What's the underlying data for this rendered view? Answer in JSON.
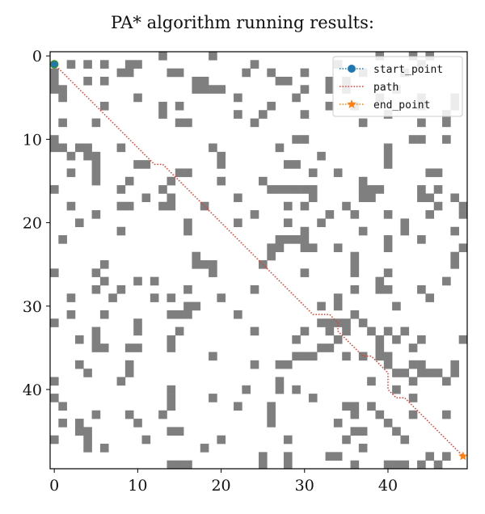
{
  "chart_data": {
    "type": "heatmap",
    "title": "PA* algorithm running results:",
    "xlabel": "",
    "ylabel": "",
    "grid_size": [
      50,
      50
    ],
    "xlim": [
      -0.5,
      49.5
    ],
    "ylim": [
      49.5,
      -0.5
    ],
    "x_ticks": [
      0,
      10,
      20,
      30,
      40
    ],
    "y_ticks": [
      0,
      10,
      20,
      30,
      40
    ],
    "grid": false,
    "colors": {
      "obstacle": "#7f7f7f",
      "free": "#ffffff",
      "start": "#1f77b4",
      "path": "#e8392b",
      "end": "#ff7f0e"
    },
    "legend": {
      "placement": "top-right",
      "entries": [
        {
          "label": "start_point",
          "marker": "circle",
          "line": "dotted",
          "color": "#1f77b4"
        },
        {
          "label": "path",
          "marker": "none",
          "line": "dotted",
          "color": "#e8392b"
        },
        {
          "label": "end_point",
          "marker": "star",
          "line": "dotted",
          "color": "#ff7f0e"
        }
      ]
    },
    "start_point": {
      "x": 0,
      "y": 1
    },
    "end_point": {
      "x": 49,
      "y": 48
    },
    "path": [
      [
        0,
        1
      ],
      [
        1,
        2
      ],
      [
        2,
        3
      ],
      [
        3,
        4
      ],
      [
        4,
        5
      ],
      [
        5,
        6
      ],
      [
        6,
        7
      ],
      [
        7,
        8
      ],
      [
        8,
        9
      ],
      [
        9,
        10
      ],
      [
        10,
        11
      ],
      [
        11,
        12
      ],
      [
        12,
        13
      ],
      [
        13,
        13
      ],
      [
        14,
        14
      ],
      [
        15,
        15
      ],
      [
        16,
        16
      ],
      [
        17,
        17
      ],
      [
        18,
        18
      ],
      [
        19,
        19
      ],
      [
        20,
        20
      ],
      [
        21,
        21
      ],
      [
        22,
        22
      ],
      [
        23,
        23
      ],
      [
        24,
        24
      ],
      [
        25,
        25
      ],
      [
        26,
        26
      ],
      [
        27,
        27
      ],
      [
        28,
        28
      ],
      [
        29,
        29
      ],
      [
        30,
        30
      ],
      [
        31,
        31
      ],
      [
        33,
        31
      ],
      [
        34,
        32
      ],
      [
        34,
        33
      ],
      [
        35,
        34
      ],
      [
        36,
        35
      ],
      [
        37,
        36
      ],
      [
        38,
        36
      ],
      [
        39,
        37
      ],
      [
        40,
        38
      ],
      [
        40,
        39
      ],
      [
        40,
        40
      ],
      [
        41,
        41
      ],
      [
        42,
        41
      ],
      [
        43,
        42
      ],
      [
        44,
        43
      ],
      [
        45,
        44
      ],
      [
        46,
        45
      ],
      [
        47,
        46
      ],
      [
        48,
        47
      ],
      [
        49,
        48
      ]
    ],
    "obstacles": [
      [
        13,
        0
      ],
      [
        19,
        0
      ],
      [
        39,
        0
      ],
      [
        43,
        0
      ],
      [
        45,
        0
      ],
      [
        2,
        1
      ],
      [
        4,
        1
      ],
      [
        6,
        1
      ],
      [
        9,
        1
      ],
      [
        10,
        1
      ],
      [
        24,
        1
      ],
      [
        34,
        1
      ],
      [
        44,
        1
      ],
      [
        0,
        2
      ],
      [
        8,
        2
      ],
      [
        9,
        2
      ],
      [
        14,
        2
      ],
      [
        15,
        2
      ],
      [
        23,
        2
      ],
      [
        26,
        2
      ],
      [
        30,
        2
      ],
      [
        37,
        2
      ],
      [
        42,
        2
      ],
      [
        0,
        3
      ],
      [
        4,
        3
      ],
      [
        6,
        3
      ],
      [
        17,
        3
      ],
      [
        18,
        3
      ],
      [
        27,
        3
      ],
      [
        28,
        3
      ],
      [
        33,
        3
      ],
      [
        35,
        3
      ],
      [
        0,
        4
      ],
      [
        1,
        4
      ],
      [
        17,
        4
      ],
      [
        18,
        4
      ],
      [
        19,
        4
      ],
      [
        20,
        4
      ],
      [
        30,
        4
      ],
      [
        33,
        4
      ],
      [
        35,
        4
      ],
      [
        41,
        4
      ],
      [
        1,
        5
      ],
      [
        10,
        5
      ],
      [
        22,
        5
      ],
      [
        29,
        5
      ],
      [
        39,
        5
      ],
      [
        44,
        5
      ],
      [
        48,
        5
      ],
      [
        6,
        6
      ],
      [
        13,
        6
      ],
      [
        15,
        6
      ],
      [
        26,
        6
      ],
      [
        33,
        6
      ],
      [
        36,
        6
      ],
      [
        44,
        6
      ],
      [
        48,
        6
      ],
      [
        13,
        7
      ],
      [
        22,
        7
      ],
      [
        25,
        7
      ],
      [
        30,
        7
      ],
      [
        40,
        7
      ],
      [
        47,
        7
      ],
      [
        1,
        8
      ],
      [
        5,
        8
      ],
      [
        15,
        8
      ],
      [
        16,
        8
      ],
      [
        24,
        8
      ],
      [
        37,
        8
      ],
      [
        44,
        8
      ],
      [
        47,
        8
      ],
      [
        0,
        10
      ],
      [
        29,
        10
      ],
      [
        30,
        10
      ],
      [
        43,
        10
      ],
      [
        44,
        10
      ],
      [
        47,
        10
      ],
      [
        0,
        11
      ],
      [
        1,
        11
      ],
      [
        3,
        11
      ],
      [
        4,
        11
      ],
      [
        8,
        11
      ],
      [
        19,
        11
      ],
      [
        27,
        11
      ],
      [
        40,
        11
      ],
      [
        2,
        12
      ],
      [
        4,
        12
      ],
      [
        5,
        12
      ],
      [
        20,
        12
      ],
      [
        32,
        12
      ],
      [
        40,
        12
      ],
      [
        5,
        13
      ],
      [
        10,
        13
      ],
      [
        11,
        13
      ],
      [
        20,
        13
      ],
      [
        28,
        13
      ],
      [
        29,
        13
      ],
      [
        40,
        13
      ],
      [
        2,
        14
      ],
      [
        5,
        14
      ],
      [
        15,
        14
      ],
      [
        16,
        14
      ],
      [
        31,
        14
      ],
      [
        34,
        14
      ],
      [
        45,
        14
      ],
      [
        46,
        14
      ],
      [
        5,
        15
      ],
      [
        9,
        15
      ],
      [
        14,
        15
      ],
      [
        20,
        15
      ],
      [
        25,
        15
      ],
      [
        37,
        15
      ],
      [
        0,
        16
      ],
      [
        8,
        16
      ],
      [
        13,
        16
      ],
      [
        26,
        16
      ],
      [
        27,
        16
      ],
      [
        28,
        16
      ],
      [
        29,
        16
      ],
      [
        30,
        16
      ],
      [
        31,
        16
      ],
      [
        37,
        16
      ],
      [
        38,
        16
      ],
      [
        39,
        16
      ],
      [
        44,
        16
      ],
      [
        46,
        16
      ],
      [
        11,
        17
      ],
      [
        14,
        17
      ],
      [
        22,
        17
      ],
      [
        31,
        17
      ],
      [
        37,
        17
      ],
      [
        38,
        17
      ],
      [
        44,
        17
      ],
      [
        45,
        17
      ],
      [
        48,
        17
      ],
      [
        2,
        18
      ],
      [
        8,
        18
      ],
      [
        9,
        18
      ],
      [
        13,
        18
      ],
      [
        14,
        18
      ],
      [
        18,
        18
      ],
      [
        28,
        18
      ],
      [
        30,
        18
      ],
      [
        35,
        18
      ],
      [
        46,
        18
      ],
      [
        49,
        18
      ],
      [
        5,
        19
      ],
      [
        24,
        19
      ],
      [
        33,
        19
      ],
      [
        36,
        19
      ],
      [
        40,
        19
      ],
      [
        45,
        19
      ],
      [
        49,
        19
      ],
      [
        3,
        20
      ],
      [
        16,
        20
      ],
      [
        22,
        20
      ],
      [
        28,
        20
      ],
      [
        32,
        20
      ],
      [
        42,
        20
      ],
      [
        8,
        21
      ],
      [
        16,
        21
      ],
      [
        30,
        21
      ],
      [
        37,
        21
      ],
      [
        42,
        21
      ],
      [
        48,
        21
      ],
      [
        1,
        22
      ],
      [
        27,
        22
      ],
      [
        28,
        22
      ],
      [
        29,
        22
      ],
      [
        30,
        22
      ],
      [
        40,
        22
      ],
      [
        44,
        22
      ],
      [
        26,
        23
      ],
      [
        27,
        23
      ],
      [
        30,
        23
      ],
      [
        31,
        23
      ],
      [
        34,
        23
      ],
      [
        40,
        23
      ],
      [
        49,
        23
      ],
      [
        17,
        24
      ],
      [
        26,
        24
      ],
      [
        36,
        24
      ],
      [
        48,
        24
      ],
      [
        6,
        25
      ],
      [
        17,
        25
      ],
      [
        18,
        25
      ],
      [
        19,
        25
      ],
      [
        25,
        25
      ],
      [
        36,
        25
      ],
      [
        48,
        25
      ],
      [
        0,
        26
      ],
      [
        5,
        26
      ],
      [
        19,
        26
      ],
      [
        30,
        26
      ],
      [
        36,
        26
      ],
      [
        40,
        26
      ],
      [
        6,
        27
      ],
      [
        10,
        27
      ],
      [
        12,
        27
      ],
      [
        39,
        27
      ],
      [
        47,
        27
      ],
      [
        5,
        28
      ],
      [
        8,
        28
      ],
      [
        16,
        28
      ],
      [
        24,
        28
      ],
      [
        36,
        28
      ],
      [
        39,
        28
      ],
      [
        40,
        28
      ],
      [
        44,
        28
      ],
      [
        2,
        29
      ],
      [
        7,
        29
      ],
      [
        12,
        29
      ],
      [
        14,
        29
      ],
      [
        20,
        29
      ],
      [
        34,
        29
      ],
      [
        45,
        29
      ],
      [
        16,
        30
      ],
      [
        17,
        30
      ],
      [
        32,
        30
      ],
      [
        34,
        30
      ],
      [
        41,
        30
      ],
      [
        2,
        31
      ],
      [
        6,
        31
      ],
      [
        14,
        31
      ],
      [
        15,
        31
      ],
      [
        16,
        31
      ],
      [
        22,
        31
      ],
      [
        36,
        31
      ],
      [
        0,
        32
      ],
      [
        10,
        32
      ],
      [
        32,
        32
      ],
      [
        33,
        32
      ],
      [
        34,
        32
      ],
      [
        35,
        32
      ],
      [
        37,
        32
      ],
      [
        5,
        33
      ],
      [
        10,
        33
      ],
      [
        15,
        33
      ],
      [
        24,
        33
      ],
      [
        30,
        33
      ],
      [
        33,
        33
      ],
      [
        35,
        33
      ],
      [
        38,
        33
      ],
      [
        40,
        33
      ],
      [
        42,
        33
      ],
      [
        3,
        34
      ],
      [
        5,
        34
      ],
      [
        14,
        34
      ],
      [
        29,
        34
      ],
      [
        34,
        34
      ],
      [
        39,
        34
      ],
      [
        41,
        34
      ],
      [
        44,
        34
      ],
      [
        49,
        34
      ],
      [
        5,
        35
      ],
      [
        6,
        35
      ],
      [
        9,
        35
      ],
      [
        10,
        35
      ],
      [
        14,
        35
      ],
      [
        32,
        35
      ],
      [
        33,
        35
      ],
      [
        39,
        35
      ],
      [
        43,
        35
      ],
      [
        19,
        36
      ],
      [
        29,
        36
      ],
      [
        30,
        36
      ],
      [
        31,
        36
      ],
      [
        35,
        36
      ],
      [
        37,
        36
      ],
      [
        39,
        36
      ],
      [
        40,
        36
      ],
      [
        3,
        37
      ],
      [
        9,
        37
      ],
      [
        24,
        37
      ],
      [
        27,
        37
      ],
      [
        28,
        37
      ],
      [
        40,
        37
      ],
      [
        43,
        37
      ],
      [
        44,
        37
      ],
      [
        48,
        37
      ],
      [
        4,
        38
      ],
      [
        9,
        38
      ],
      [
        41,
        38
      ],
      [
        42,
        38
      ],
      [
        44,
        38
      ],
      [
        45,
        38
      ],
      [
        46,
        38
      ],
      [
        48,
        38
      ],
      [
        0,
        39
      ],
      [
        8,
        39
      ],
      [
        27,
        39
      ],
      [
        38,
        39
      ],
      [
        43,
        39
      ],
      [
        47,
        39
      ],
      [
        14,
        40
      ],
      [
        23,
        40
      ],
      [
        27,
        40
      ],
      [
        29,
        40
      ],
      [
        41,
        40
      ],
      [
        0,
        41
      ],
      [
        14,
        41
      ],
      [
        19,
        41
      ],
      [
        31,
        41
      ],
      [
        43,
        41
      ],
      [
        1,
        42
      ],
      [
        14,
        42
      ],
      [
        22,
        42
      ],
      [
        26,
        42
      ],
      [
        35,
        42
      ],
      [
        36,
        42
      ],
      [
        38,
        42
      ],
      [
        5,
        43
      ],
      [
        9,
        43
      ],
      [
        13,
        43
      ],
      [
        26,
        43
      ],
      [
        36,
        43
      ],
      [
        39,
        43
      ],
      [
        43,
        43
      ],
      [
        47,
        43
      ],
      [
        1,
        44
      ],
      [
        3,
        44
      ],
      [
        10,
        44
      ],
      [
        26,
        44
      ],
      [
        34,
        44
      ],
      [
        40,
        44
      ],
      [
        3,
        45
      ],
      [
        4,
        45
      ],
      [
        14,
        45
      ],
      [
        15,
        45
      ],
      [
        36,
        45
      ],
      [
        37,
        45
      ],
      [
        41,
        45
      ],
      [
        0,
        46
      ],
      [
        4,
        46
      ],
      [
        11,
        46
      ],
      [
        20,
        46
      ],
      [
        28,
        46
      ],
      [
        35,
        46
      ],
      [
        42,
        46
      ],
      [
        4,
        47
      ],
      [
        6,
        47
      ],
      [
        18,
        47
      ],
      [
        37,
        47
      ],
      [
        25,
        48
      ],
      [
        28,
        48
      ],
      [
        33,
        48
      ],
      [
        34,
        48
      ],
      [
        45,
        48
      ],
      [
        47,
        48
      ],
      [
        14,
        49
      ],
      [
        15,
        49
      ],
      [
        16,
        49
      ],
      [
        25,
        49
      ],
      [
        28,
        49
      ],
      [
        36,
        49
      ],
      [
        40,
        49
      ],
      [
        41,
        49
      ],
      [
        42,
        49
      ],
      [
        44,
        49
      ],
      [
        46,
        49
      ]
    ]
  }
}
